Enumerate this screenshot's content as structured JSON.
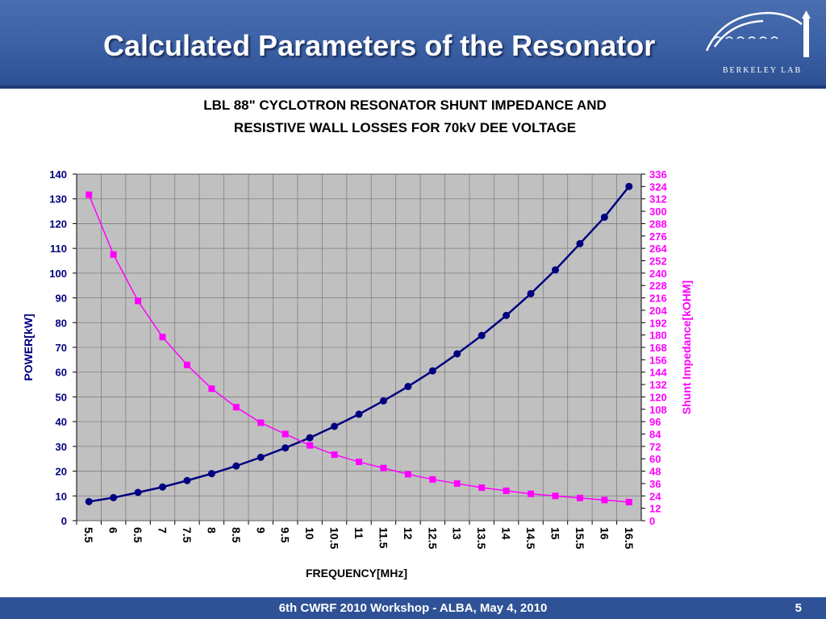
{
  "slide": {
    "title": "Calculated  Parameters of the Resonator",
    "logo_text": "Berkeley Lab",
    "footer": "6th CWRF 2010 Workshop - ALBA, May 4, 2010",
    "page_number": "5"
  },
  "colors": {
    "header": "#3a5fa3",
    "power_series": "#000080",
    "impedance_series": "#ff00ff",
    "plot_background": "#c0c0c0"
  },
  "chart_data": {
    "type": "line",
    "title_lines": [
      "LBL 88\" CYCLOTRON RESONATOR SHUNT IMPEDANCE AND",
      "RESISTIVE WALL LOSSES FOR 70kV DEE VOLTAGE"
    ],
    "xlabel": "FREQUENCY[MHz]",
    "ylabel": "POWER[kW]",
    "y2label": "Shunt Impedance[kOHM]",
    "categories": [
      "5.5",
      "6",
      "6.5",
      "7",
      "7.5",
      "8",
      "8.5",
      "9",
      "9.5",
      "10",
      "10.5",
      "11",
      "11.5",
      "12",
      "12.5",
      "13",
      "13.5",
      "14",
      "14.5",
      "15",
      "15.5",
      "16",
      "16.5"
    ],
    "ylim": [
      0,
      140
    ],
    "yticks": [
      "0",
      "10",
      "20",
      "30",
      "40",
      "50",
      "60",
      "70",
      "80",
      "90",
      "100",
      "110",
      "120",
      "130",
      "140"
    ],
    "y2lim": [
      0,
      336
    ],
    "y2ticks": [
      "0",
      "12",
      "24",
      "36",
      "48",
      "60",
      "72",
      "84",
      "96",
      "108",
      "120",
      "132",
      "144",
      "156",
      "168",
      "180",
      "192",
      "204",
      "216",
      "228",
      "240",
      "252",
      "264",
      "276",
      "288",
      "300",
      "312",
      "324",
      "336"
    ],
    "grid": true,
    "series": [
      {
        "axis": "left",
        "values": [
          7.7,
          9.3,
          11.4,
          13.6,
          16.2,
          19.0,
          22.1,
          25.6,
          29.4,
          33.5,
          38.1,
          43.0,
          48.4,
          54.2,
          60.5,
          67.4,
          74.8,
          82.9,
          91.7,
          101.3,
          111.9,
          122.6,
          135.0
        ]
      },
      {
        "axis": "right",
        "values": [
          316,
          258,
          213,
          178,
          151,
          128,
          110,
          95,
          84,
          73,
          64,
          57,
          51,
          45,
          40,
          36,
          32,
          29,
          26,
          24,
          22,
          20,
          18
        ]
      }
    ]
  }
}
